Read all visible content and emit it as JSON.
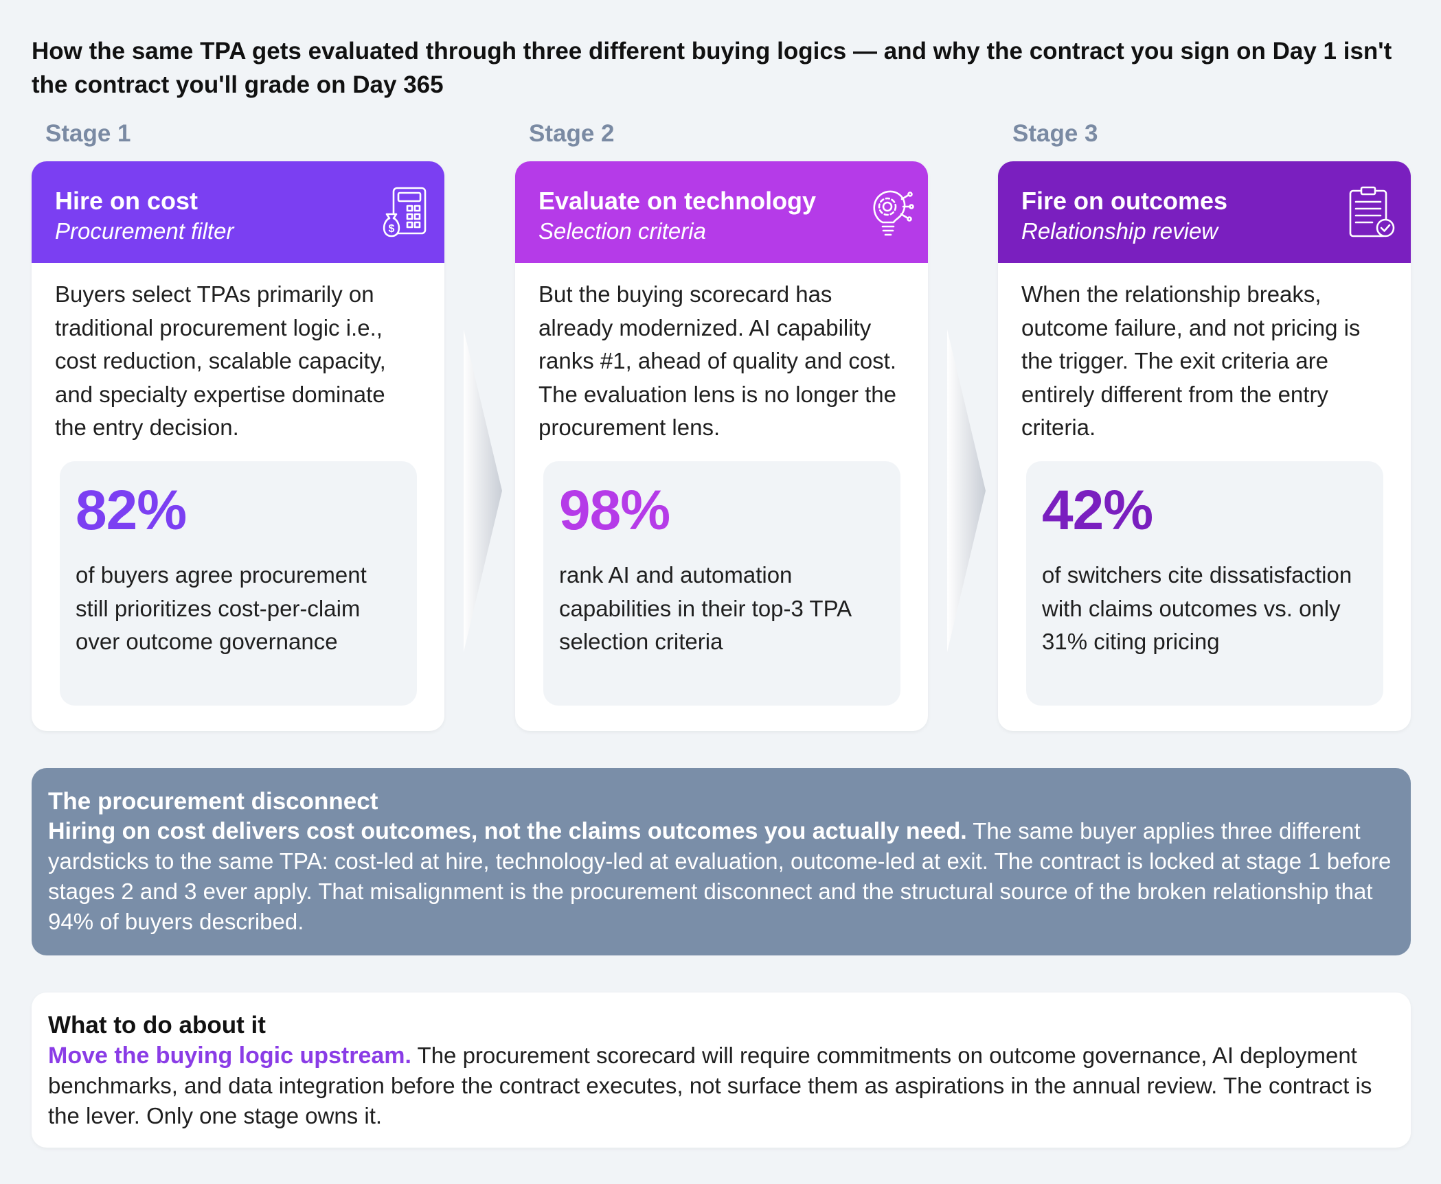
{
  "headline": "How the same TPA gets evaluated through three different buying logics — and why the contract you sign on Day 1 isn't the contract you'll grade on Day 365",
  "stages": [
    {
      "label": "Stage 1",
      "title": "Hire on cost",
      "subtitle": "Procurement filter",
      "icon": "calculator-money-bag-icon",
      "color": "#7b3ff2",
      "body": "Buyers select TPAs primarily on traditional procurement logic i.e., cost reduction, scalable capacity, and specialty expertise dominate the entry decision.",
      "stat": "82%",
      "stat_text": "of buyers agree procurement still prioritizes cost-per-claim over outcome governance"
    },
    {
      "label": "Stage 2",
      "title": "Evaluate on technology",
      "subtitle": "Selection criteria",
      "icon": "lightbulb-gear-icon",
      "color": "#b53be8",
      "body": "But the buying scorecard has already modernized. AI capability ranks #1, ahead of quality and cost. The evaluation lens is no longer the procurement lens.",
      "stat": "98%",
      "stat_text": "rank AI and automation capabilities in their top-3 TPA selection criteria"
    },
    {
      "label": "Stage 3",
      "title": "Fire on outcomes",
      "subtitle": "Relationship review",
      "icon": "clipboard-check-icon",
      "color": "#7a1fbf",
      "body": "When the relationship breaks, outcome failure, and not pricing is the trigger. The exit criteria are entirely different from the entry criteria.",
      "stat": "42%",
      "stat_text": "of switchers cite dissatisfaction with claims outcomes vs. only 31% citing pricing"
    }
  ],
  "disconnect": {
    "title": "The procurement disconnect",
    "lead": "Hiring on cost delivers cost outcomes, not the claims outcomes you actually need.",
    "body": " The same buyer applies three different yardsticks to the same TPA: cost-led at hire, technology-led at evaluation, outcome-led at exit. The contract is locked at stage 1 before stages 2 and 3 ever apply. That misalignment is the procurement disconnect and the structural source of the broken relationship that 94% of buyers described."
  },
  "todo": {
    "title": "What to do about it",
    "lead": "Move the buying logic upstream.",
    "body": " The procurement scorecard will require commitments on outcome governance, AI deployment benchmarks, and data integration before the contract executes, not surface them as aspirations in the annual review. The contract is the lever. Only one stage owns it."
  }
}
